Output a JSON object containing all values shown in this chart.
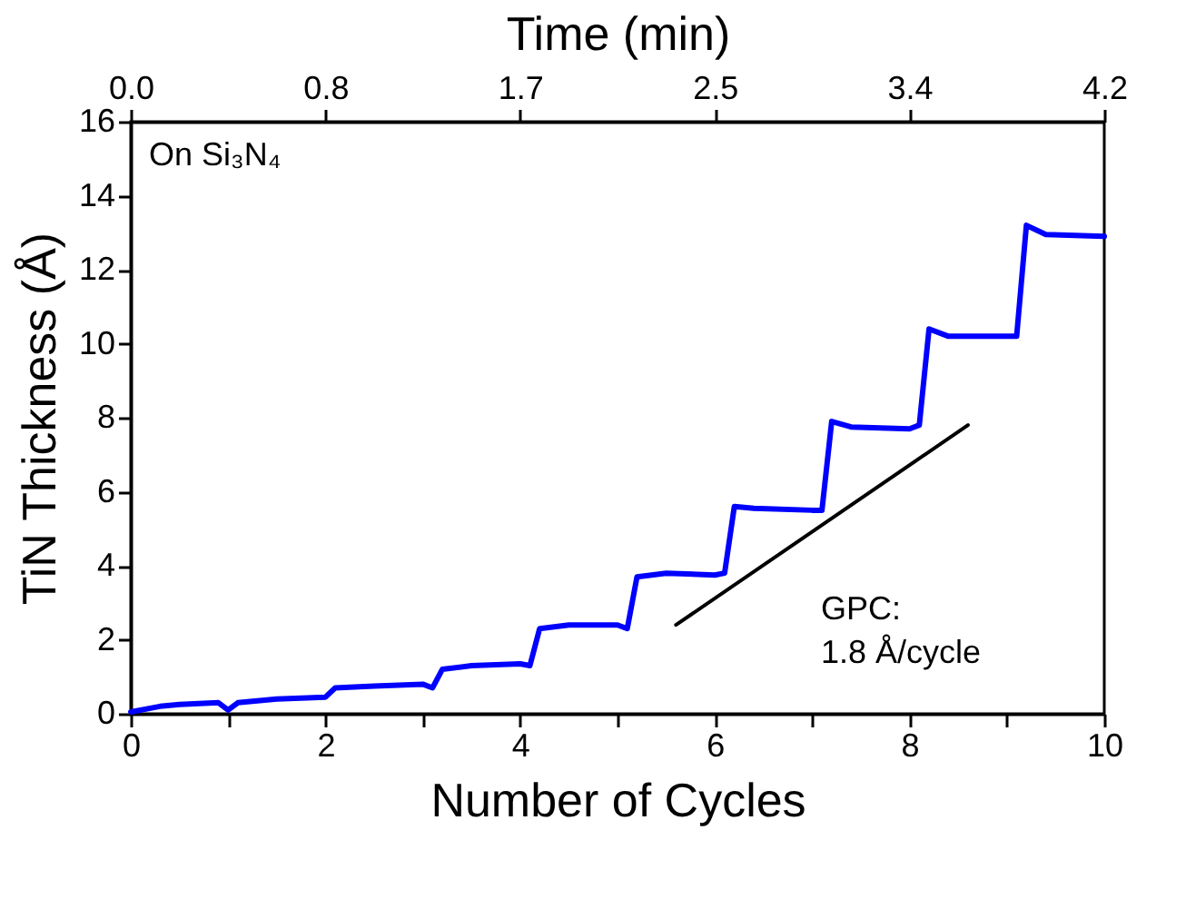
{
  "chart_data": {
    "type": "line",
    "xlabel": "Number of Cycles",
    "ylabel": "TiN Thickness (Å)",
    "x2label": "Time (min)",
    "xlim": [
      0,
      10
    ],
    "xticks": [
      0,
      {
        "value": 1,
        "label": null
      },
      2,
      {
        "value": 3,
        "label": null
      },
      4,
      {
        "value": 5,
        "label": null
      },
      6,
      {
        "value": 7,
        "label": null
      },
      8,
      {
        "value": 9,
        "label": null
      },
      10
    ],
    "x2lim": [
      0,
      4.2
    ],
    "x2ticks": [
      {
        "value": 0,
        "label": "0.0"
      },
      {
        "value": 0.84,
        "label": "0.8"
      },
      {
        "value": 1.68,
        "label": "1.7"
      },
      {
        "value": 2.52,
        "label": "2.5"
      },
      {
        "value": 3.36,
        "label": "3.4"
      },
      {
        "value": 4.2,
        "label": "4.2"
      }
    ],
    "ylim": [
      0,
      16
    ],
    "yticks": [
      0,
      2,
      4,
      6,
      8,
      10,
      12,
      14,
      16
    ],
    "series": [
      {
        "type": "line",
        "color": "#0000ff",
        "x": [
          0,
          0.3,
          0.5,
          0.9,
          1.0,
          1.1,
          1.5,
          2.0,
          2.1,
          2.5,
          3.0,
          3.1,
          3.2,
          3.5,
          4.0,
          4.1,
          4.2,
          4.5,
          5.0,
          5.1,
          5.2,
          5.5,
          6.0,
          6.1,
          6.2,
          6.4,
          7.0,
          7.1,
          7.2,
          7.4,
          8.0,
          8.1,
          8.2,
          8.4,
          9.0,
          9.1,
          9.2,
          9.4,
          10.0
        ],
        "values": [
          0.05,
          0.2,
          0.25,
          0.3,
          0.1,
          0.3,
          0.4,
          0.45,
          0.7,
          0.75,
          0.8,
          0.7,
          1.2,
          1.3,
          1.35,
          1.3,
          2.3,
          2.4,
          2.4,
          2.3,
          3.7,
          3.8,
          3.75,
          3.8,
          5.6,
          5.55,
          5.5,
          5.5,
          7.9,
          7.75,
          7.7,
          7.8,
          10.4,
          10.2,
          10.2,
          10.2,
          13.2,
          12.95,
          12.9
        ]
      },
      {
        "type": "line",
        "color": "#000000",
        "x": [
          5.6,
          8.6
        ],
        "values": [
          2.4,
          7.8
        ]
      }
    ],
    "annotations": [
      "On Si₃N₄",
      "GPC:\n1.8 Å/cycle"
    ]
  }
}
